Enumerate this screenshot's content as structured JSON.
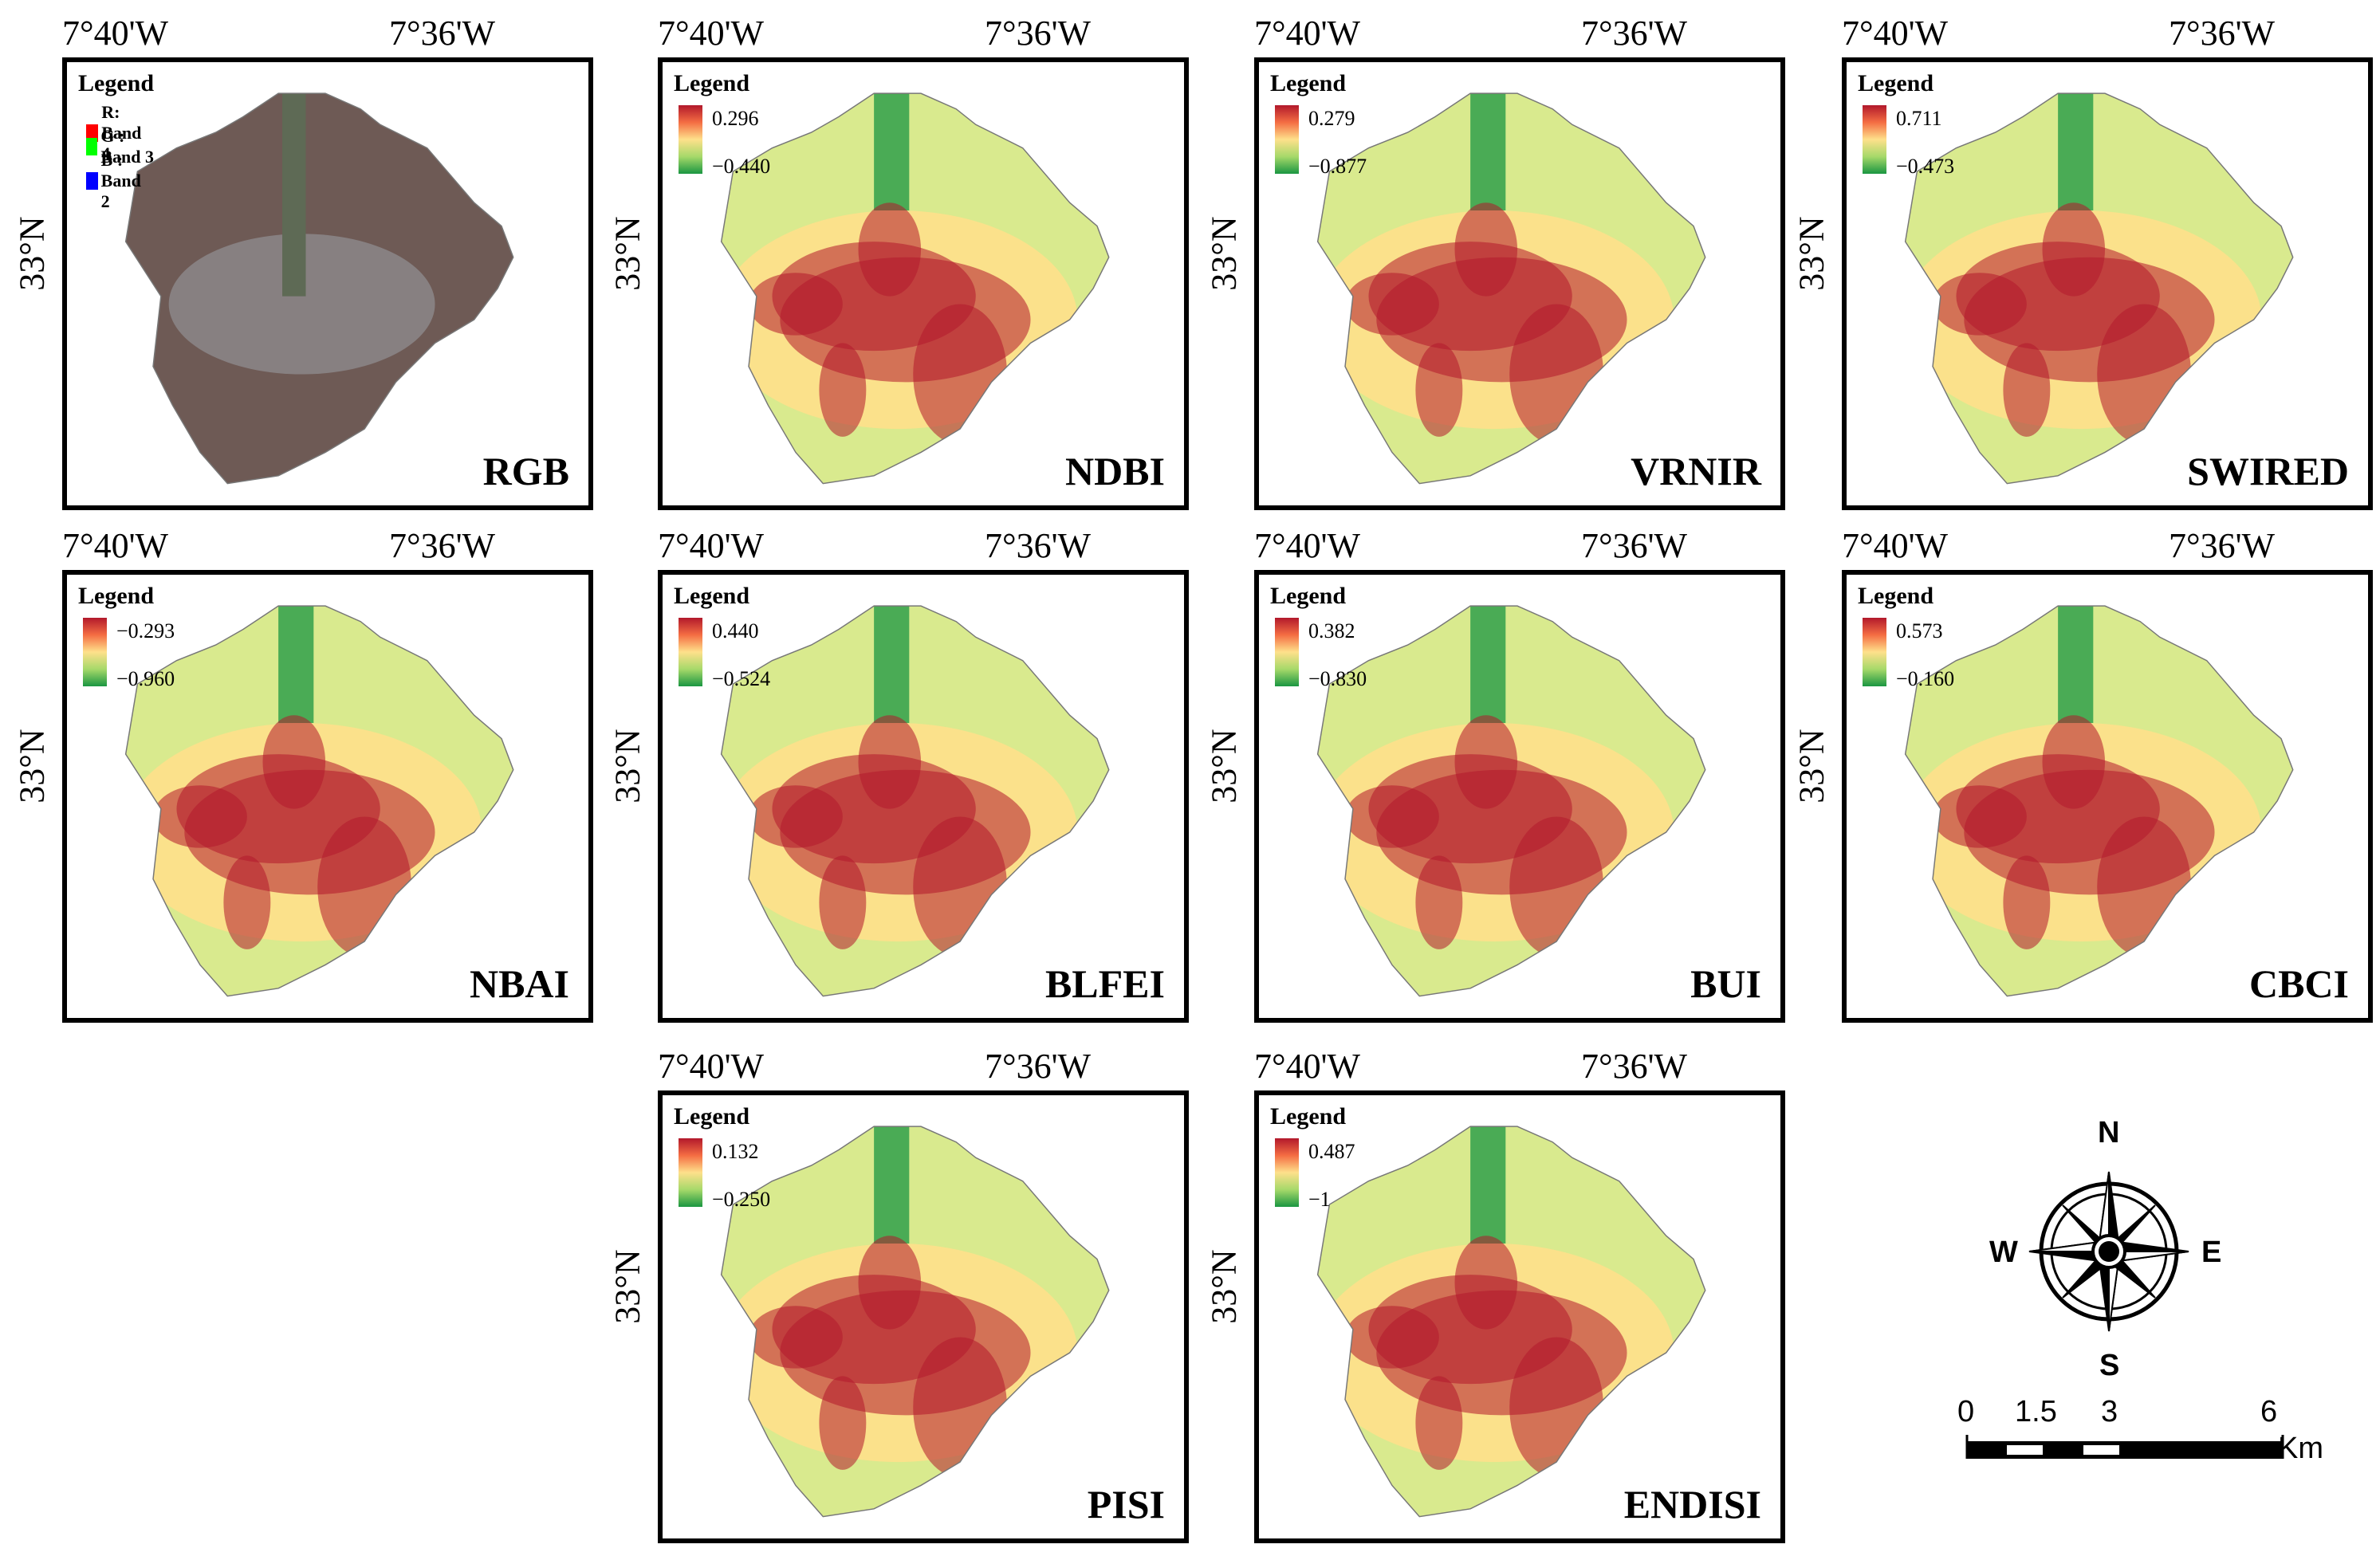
{
  "coordinates": {
    "lon_left": "7°40'W",
    "lon_right": "7°36'W",
    "lat": "33°N"
  },
  "rgb_legend": {
    "title": "Legend",
    "bands": [
      {
        "label": "R: Band 4",
        "color": "#ff0000"
      },
      {
        "label": "G : Band 3",
        "color": "#00ff00"
      },
      {
        "label": "B : Band 2",
        "color": "#0000ff"
      }
    ]
  },
  "panels": [
    {
      "name": "RGB",
      "type": "rgb"
    },
    {
      "name": "NDBI",
      "legend_title": "Legend",
      "max": "0.296",
      "min": "−0.440"
    },
    {
      "name": "VRNIR",
      "legend_title": "Legend",
      "max": "0.279",
      "min": "−0.877"
    },
    {
      "name": "SWIRED",
      "legend_title": "Legend",
      "max": "0.711",
      "min": "−0.473"
    },
    {
      "name": "NBAI",
      "legend_title": "Legend",
      "max": "−0.293",
      "min": "−0.960"
    },
    {
      "name": "BLFEI",
      "legend_title": "Legend",
      "max": "0.440",
      "min": "−0.524"
    },
    {
      "name": "BUI",
      "legend_title": "Legend",
      "max": "0.382",
      "min": "−0.830"
    },
    {
      "name": "CBCI",
      "legend_title": "Legend",
      "max": "0.573",
      "min": "−0.160"
    },
    {
      "name": "PISI",
      "legend_title": "Legend",
      "max": "0.132",
      "min": "−0.250"
    },
    {
      "name": "ENDISI",
      "legend_title": "Legend",
      "max": "0.487",
      "min": "−1"
    }
  ],
  "colors": {
    "high": "#b2182b",
    "mid": "#fee08b",
    "low": "#1a9641"
  },
  "compass": {
    "n": "N",
    "s": "S",
    "e": "E",
    "w": "W"
  },
  "scale_bar": {
    "ticks": [
      "0",
      "1.5",
      "3",
      "6"
    ],
    "unit": "Km"
  }
}
